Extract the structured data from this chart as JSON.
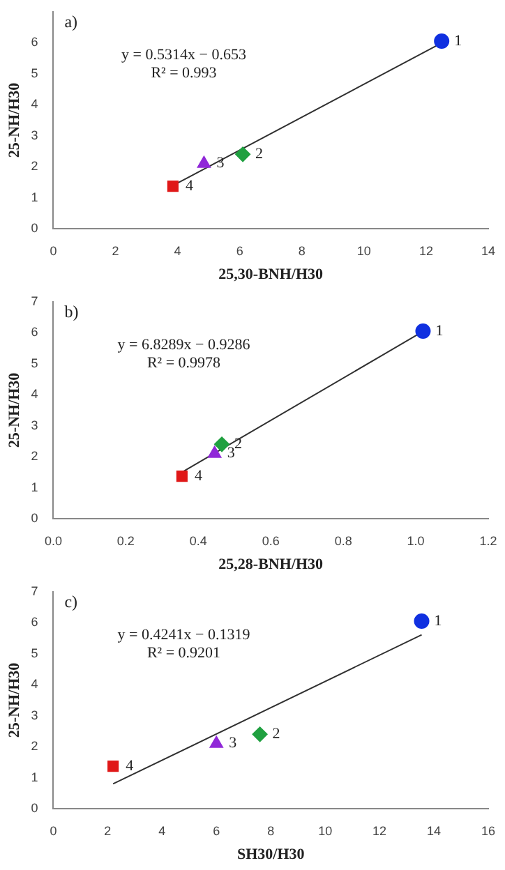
{
  "chart_data": [
    {
      "type": "scatter",
      "title": "a)",
      "xlabel": "25,30-BNH/H30",
      "ylabel": "25-NH/H30",
      "xlim": [
        0,
        14
      ],
      "xticks": [
        0,
        2,
        4,
        6,
        8,
        10,
        12,
        14
      ],
      "ylim": [
        0,
        7
      ],
      "yticks": [
        0,
        1,
        2,
        3,
        4,
        5,
        6
      ],
      "grid": false,
      "legend": false,
      "series": [
        {
          "x": [
            12.5
          ],
          "values": [
            6.05
          ],
          "color": "#1030e0",
          "marker": "circle"
        },
        {
          "x": [
            6.1
          ],
          "values": [
            2.4
          ],
          "color": "#20a040",
          "marker": "diamond"
        },
        {
          "x": [
            4.85
          ],
          "values": [
            2.1
          ],
          "color": "#9028d8",
          "marker": "triangle"
        },
        {
          "x": [
            3.85
          ],
          "values": [
            1.37
          ],
          "color": "#e01818",
          "marker": "square"
        },
        {
          "type": "line",
          "x": [
            3.85,
            12.5
          ],
          "values": [
            1.39,
            5.99
          ],
          "color": "#303030",
          "marker": "none"
        }
      ],
      "annotations": [
        "y = 0.5314x − 0.653",
        "R² = 0.993",
        {
          "text": "1",
          "x": 12.5,
          "y": 6.05
        },
        {
          "text": "2",
          "x": 6.1,
          "y": 2.4
        },
        {
          "text": "3",
          "x": 4.85,
          "y": 2.1
        },
        {
          "text": "4",
          "x": 3.85,
          "y": 1.37
        }
      ]
    },
    {
      "type": "scatter",
      "title": "b)",
      "xlabel": "25,28-BNH/H30",
      "ylabel": "25-NH/H30",
      "xlim": [
        0,
        1.2
      ],
      "xticks": [
        {
          "value": 0,
          "label": "0.0"
        },
        0.2,
        0.4,
        0.6,
        0.8,
        {
          "value": 1,
          "label": "1.0"
        },
        1.2
      ],
      "ylim": [
        0,
        7
      ],
      "yticks": [
        0,
        1,
        2,
        3,
        4,
        5,
        6,
        7
      ],
      "grid": false,
      "legend": false,
      "series": [
        {
          "x": [
            1.02
          ],
          "values": [
            6.05
          ],
          "color": "#1030e0",
          "marker": "circle"
        },
        {
          "x": [
            0.465
          ],
          "values": [
            2.4
          ],
          "color": "#20a040",
          "marker": "diamond"
        },
        {
          "x": [
            0.445
          ],
          "values": [
            2.1
          ],
          "color": "#9028d8",
          "marker": "triangle"
        },
        {
          "x": [
            0.355
          ],
          "values": [
            1.37
          ],
          "color": "#e01818",
          "marker": "square"
        },
        {
          "type": "line",
          "x": [
            0.355,
            1.02
          ],
          "values": [
            1.5,
            6.04
          ],
          "color": "#303030",
          "marker": "none"
        }
      ],
      "annotations": [
        "y = 6.8289x − 0.9286",
        "R² = 0.9978",
        {
          "text": "1",
          "x": 1.02,
          "y": 6.05
        },
        {
          "text": "2",
          "x": 0.465,
          "y": 2.4
        },
        {
          "text": "3",
          "x": 0.445,
          "y": 2.1
        },
        {
          "text": "4",
          "x": 0.355,
          "y": 1.37
        }
      ]
    },
    {
      "type": "scatter",
      "title": "c)",
      "xlabel": "SH30/H30",
      "ylabel": "25-NH/H30",
      "xlim": [
        0,
        16
      ],
      "xticks": [
        0,
        2,
        4,
        6,
        8,
        10,
        12,
        14,
        16
      ],
      "ylim": [
        0,
        7
      ],
      "yticks": [
        0,
        1,
        2,
        3,
        4,
        5,
        6,
        7
      ],
      "grid": false,
      "legend": false,
      "series": [
        {
          "x": [
            13.55
          ],
          "values": [
            6.05
          ],
          "color": "#1030e0",
          "marker": "circle"
        },
        {
          "x": [
            7.6
          ],
          "values": [
            2.4
          ],
          "color": "#20a040",
          "marker": "diamond"
        },
        {
          "x": [
            6.0
          ],
          "values": [
            2.1
          ],
          "color": "#9028d8",
          "marker": "triangle"
        },
        {
          "x": [
            2.2
          ],
          "values": [
            1.37
          ],
          "color": "#e01818",
          "marker": "square"
        },
        {
          "type": "line",
          "x": [
            2.2,
            13.55
          ],
          "values": [
            0.8,
            5.61
          ],
          "color": "#303030",
          "marker": "none"
        }
      ],
      "annotations": [
        "y = 0.4241x − 0.1319",
        "R² = 0.9201",
        {
          "text": "1",
          "x": 13.55,
          "y": 6.05
        },
        {
          "text": "2",
          "x": 7.6,
          "y": 2.4
        },
        {
          "text": "3",
          "x": 6.0,
          "y": 2.1
        },
        {
          "text": "4",
          "x": 2.2,
          "y": 1.37
        }
      ]
    }
  ]
}
